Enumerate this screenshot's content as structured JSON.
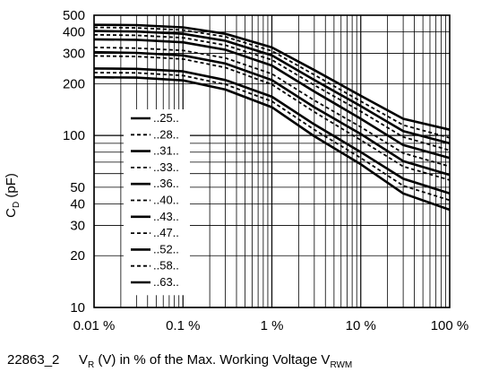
{
  "figure_id": "22863_2",
  "chart_data": {
    "type": "line",
    "xlabel": {
      "main": "V",
      "sub": "R",
      "mid": " (V) in % of the Max. Working Voltage V",
      "sub2": "RWM"
    },
    "ylabel": {
      "main": "C",
      "sub": "D",
      "tail": " (pF)"
    },
    "xscale": "log",
    "yscale": "log",
    "xlim": [
      0.01,
      100
    ],
    "ylim": [
      10,
      500
    ],
    "grid": true,
    "x_ticks": [
      {
        "value": 0.01,
        "label": "0.01 %"
      },
      {
        "value": 0.1,
        "label": "0.1 %"
      },
      {
        "value": 1,
        "label": "1 %"
      },
      {
        "value": 10,
        "label": "10 %"
      },
      {
        "value": 100,
        "label": "100 %"
      }
    ],
    "y_ticks": [
      {
        "value": 10,
        "label": "10"
      },
      {
        "value": 20,
        "label": "20"
      },
      {
        "value": 30,
        "label": "30"
      },
      {
        "value": 40,
        "label": "40"
      },
      {
        "value": 50,
        "label": "50"
      },
      {
        "value": 100,
        "label": "100"
      },
      {
        "value": 200,
        "label": "200"
      },
      {
        "value": 300,
        "label": "300"
      },
      {
        "value": 400,
        "label": "400"
      },
      {
        "value": 500,
        "label": "500"
      }
    ],
    "legend_position": "left",
    "x": [
      0.01,
      0.03,
      0.1,
      0.3,
      1,
      3,
      10,
      30,
      100
    ],
    "series": [
      {
        "name": "..25..",
        "dash": "solid",
        "values": [
          440,
          438,
          425,
          390,
          325,
          240,
          170,
          125,
          108
        ]
      },
      {
        "name": "..28..",
        "dash": "dashed",
        "values": [
          425,
          422,
          410,
          375,
          310,
          225,
          158,
          115,
          97
        ]
      },
      {
        "name": "..31..",
        "dash": "solid",
        "values": [
          405,
          402,
          390,
          355,
          292,
          210,
          148,
          106,
          90
        ]
      },
      {
        "name": "..33..",
        "dash": "dashed",
        "values": [
          385,
          382,
          370,
          335,
          275,
          196,
          138,
          98,
          82
        ]
      },
      {
        "name": "..36..",
        "dash": "solid",
        "values": [
          362,
          360,
          348,
          315,
          255,
          180,
          125,
          88,
          74
        ]
      },
      {
        "name": "..40..",
        "dash": "dashed",
        "values": [
          325,
          322,
          312,
          282,
          228,
          160,
          112,
          79,
          66
        ]
      },
      {
        "name": "..43..",
        "dash": "solid",
        "values": [
          305,
          302,
          292,
          262,
          210,
          146,
          102,
          71,
          59
        ]
      },
      {
        "name": "..47..",
        "dash": "dashed",
        "values": [
          290,
          288,
          278,
          248,
          198,
          137,
          94,
          66,
          55
        ]
      },
      {
        "name": "..52..",
        "dash": "solid",
        "values": [
          245,
          244,
          236,
          210,
          168,
          116,
          80,
          56,
          46
        ]
      },
      {
        "name": "..58..",
        "dash": "dashed",
        "values": [
          232,
          231,
          223,
          198,
          158,
          108,
          74,
          51,
          42
        ]
      },
      {
        "name": "..63..",
        "dash": "solid",
        "values": [
          218,
          217,
          209,
          185,
          146,
          99,
          68,
          46,
          37
        ]
      }
    ]
  }
}
